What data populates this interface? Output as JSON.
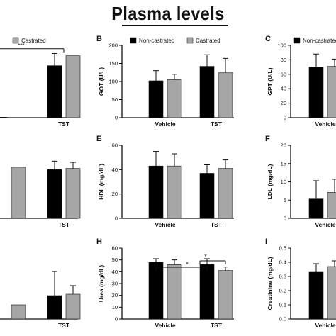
{
  "page": {
    "title": "Plasma levels"
  },
  "legend": {
    "non_castrated": "Non-castrated",
    "castrated": "Castrated"
  },
  "colors": {
    "non_castrated": "#000000",
    "castrated": "#a6a6a6",
    "axis": "#111111"
  },
  "chart_data": [
    {
      "id": "A",
      "type": "bar",
      "label": "",
      "ylabel": "",
      "categories": [
        "",
        "TST"
      ],
      "ylim": [
        0,
        160
      ],
      "yticks": [],
      "legend": [
        "",
        "Castrated"
      ],
      "series": [
        {
          "name": "Non-castrated",
          "values": [
            1,
            115
          ],
          "errors": [
            0,
            27
          ]
        },
        {
          "name": "Castrated",
          "values": [
            0,
            137
          ],
          "errors": [
            0,
            0
          ]
        }
      ],
      "significance": [
        {
          "label": "***",
          "level": 140
        }
      ]
    },
    {
      "id": "B",
      "type": "bar",
      "label": "B",
      "ylabel": "GOT (U/L)",
      "categories": [
        "Vehicle",
        "TST"
      ],
      "ylim": [
        0,
        200
      ],
      "yticks": [
        0,
        50,
        100,
        150,
        200
      ],
      "legend": [
        "Non-castrated",
        "Castrated"
      ],
      "series": [
        {
          "name": "Non-castrated",
          "values": [
            102,
            142
          ],
          "errors": [
            28,
            32
          ]
        },
        {
          "name": "Castrated",
          "values": [
            105,
            124
          ],
          "errors": [
            15,
            40
          ]
        }
      ],
      "significance": []
    },
    {
      "id": "C",
      "type": "bar",
      "label": "C",
      "ylabel": "GPT (U/L)",
      "categories": [
        "Vehicle"
      ],
      "ylim": [
        0,
        100
      ],
      "yticks": [
        0,
        20,
        40,
        60,
        80,
        100
      ],
      "legend": [
        "Non-castrated"
      ],
      "series": [
        {
          "name": "Non-castrated",
          "values": [
            70
          ],
          "errors": [
            18
          ]
        },
        {
          "name": "Castrated",
          "values": [
            71
          ],
          "errors": [
            10
          ]
        }
      ],
      "significance": []
    },
    {
      "id": "D",
      "type": "bar",
      "label": "",
      "ylabel": "",
      "categories": [
        "",
        "TST"
      ],
      "ylim": [
        0,
        60
      ],
      "yticks": [],
      "legend": [],
      "series": [
        {
          "name": "Non-castrated",
          "values": [
            0,
            40
          ],
          "errors": [
            0,
            7
          ]
        },
        {
          "name": "Castrated",
          "values": [
            42,
            41
          ],
          "errors": [
            0,
            5
          ]
        }
      ],
      "significance": []
    },
    {
      "id": "E",
      "type": "bar",
      "label": "E",
      "ylabel": "HDL (mg/dL)",
      "categories": [
        "Vehicle",
        "TST"
      ],
      "ylim": [
        0,
        60
      ],
      "yticks": [
        0,
        20,
        40,
        60
      ],
      "legend": [],
      "series": [
        {
          "name": "Non-castrated",
          "values": [
            43,
            37
          ],
          "errors": [
            12,
            7
          ]
        },
        {
          "name": "Castrated",
          "values": [
            43,
            41
          ],
          "errors": [
            10,
            7
          ]
        }
      ],
      "significance": []
    },
    {
      "id": "F",
      "type": "bar",
      "label": "F",
      "ylabel": "LDL (mg/dL)",
      "categories": [
        "Vehicle"
      ],
      "ylim": [
        0,
        20
      ],
      "yticks": [
        0,
        5,
        10,
        15,
        20
      ],
      "legend": [],
      "series": [
        {
          "name": "Non-castrated",
          "values": [
            5.3
          ],
          "errors": [
            5
          ]
        },
        {
          "name": "Castrated",
          "values": [
            7.1
          ],
          "errors": [
            3.6
          ]
        }
      ],
      "significance": []
    },
    {
      "id": "G",
      "type": "bar",
      "label": "",
      "ylabel": "",
      "categories": [
        "",
        "TST"
      ],
      "ylim": [
        0,
        100
      ],
      "yticks": [],
      "legend": [],
      "series": [
        {
          "name": "Non-castrated",
          "values": [
            0,
            33
          ],
          "errors": [
            0,
            34
          ]
        },
        {
          "name": "Castrated",
          "values": [
            20,
            35
          ],
          "errors": [
            0,
            12
          ]
        }
      ],
      "significance": []
    },
    {
      "id": "H",
      "type": "bar",
      "label": "H",
      "ylabel": "Urea (mg/dL)",
      "categories": [
        "Vehicle",
        "TST"
      ],
      "ylim": [
        0,
        60
      ],
      "yticks": [
        0,
        10,
        20,
        30,
        40,
        50,
        60
      ],
      "legend": [],
      "series": [
        {
          "name": "Non-castrated",
          "values": [
            48,
            46
          ],
          "errors": [
            3,
            5
          ]
        },
        {
          "name": "Castrated",
          "values": [
            46,
            41
          ],
          "errors": [
            4,
            3
          ]
        }
      ],
      "significance": [
        {
          "label": "*",
          "level": 55
        },
        {
          "label": "*",
          "level": 52
        }
      ]
    },
    {
      "id": "I",
      "type": "bar",
      "label": "I",
      "ylabel": "Creatinine (mg/dL)",
      "categories": [
        "Vehicle"
      ],
      "ylim": [
        0,
        0.5
      ],
      "yticks": [
        0.0,
        0.1,
        0.2,
        0.3,
        0.4,
        0.5
      ],
      "legend": [],
      "series": [
        {
          "name": "Non-castrated",
          "values": [
            0.33
          ],
          "errors": [
            0.06
          ]
        },
        {
          "name": "Castrated",
          "values": [
            0.37
          ],
          "errors": [
            0.04
          ]
        }
      ],
      "significance": []
    }
  ]
}
